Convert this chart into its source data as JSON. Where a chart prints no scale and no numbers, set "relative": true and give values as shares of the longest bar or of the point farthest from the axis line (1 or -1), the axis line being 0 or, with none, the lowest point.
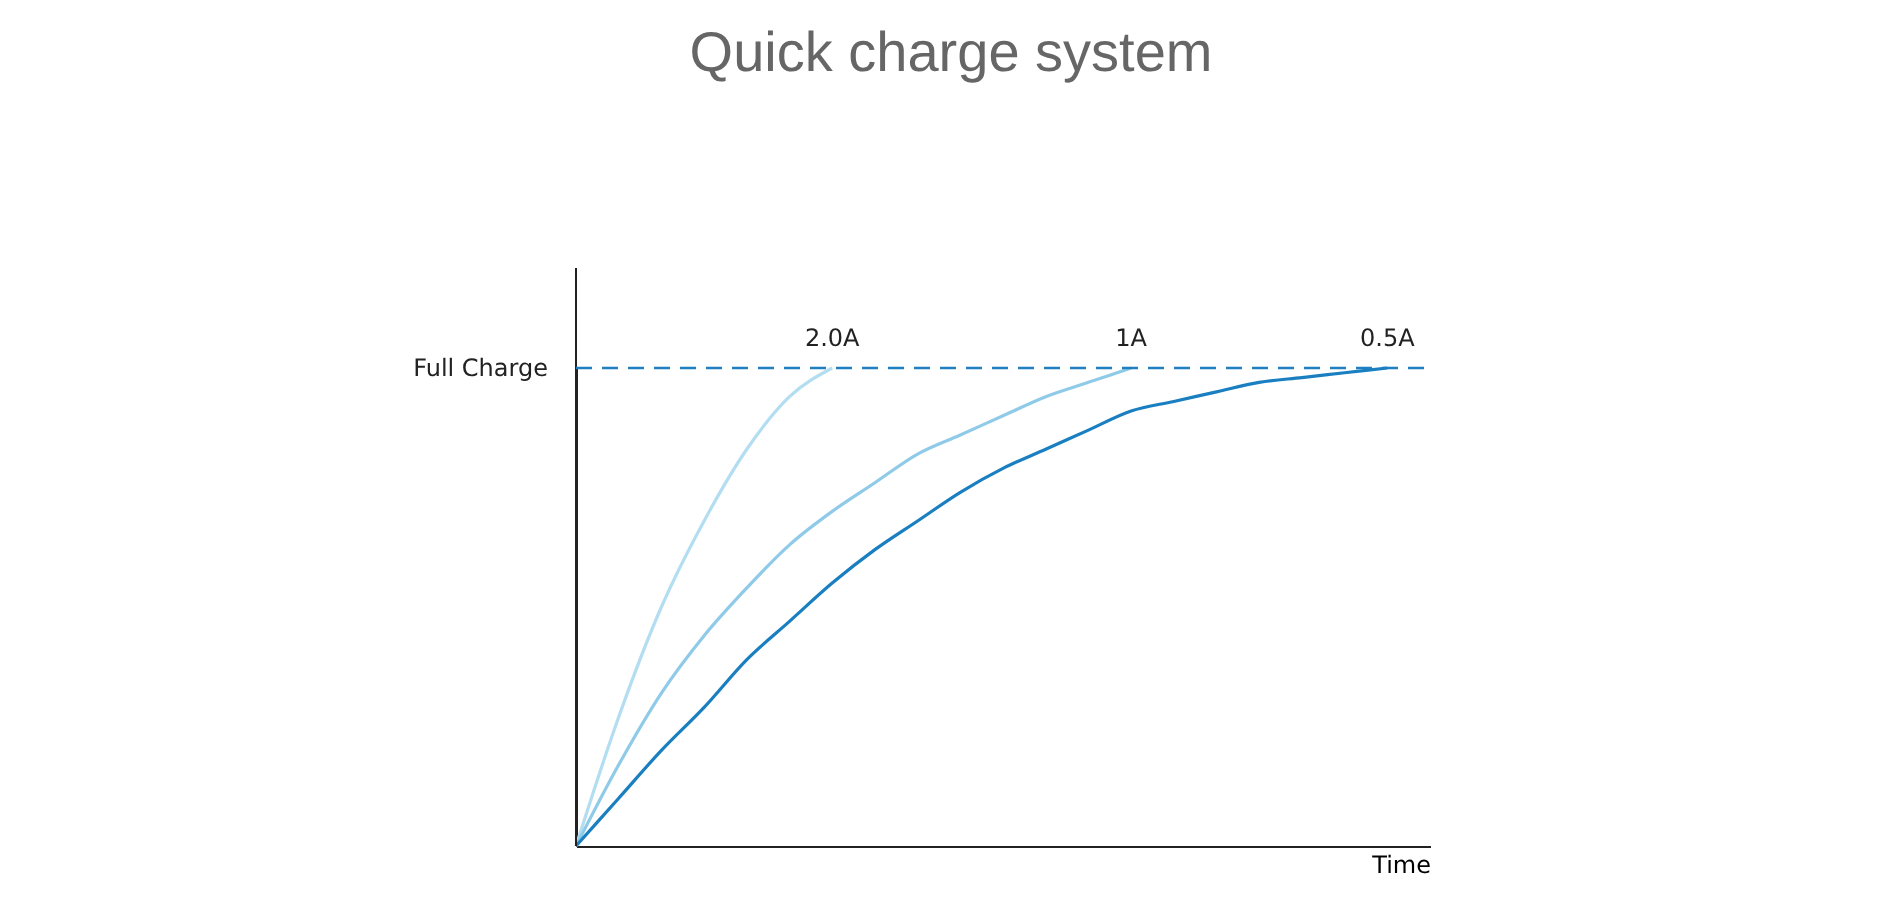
{
  "chart_data": {
    "type": "line",
    "title": "Quick charge system",
    "xlabel": "Time",
    "relative": true,
    "legend": false,
    "grid": false,
    "tick_labels": false,
    "marker": "none",
    "line_style": "solid",
    "categories": [
      null,
      null,
      null,
      null,
      null,
      null,
      null,
      null,
      null,
      null,
      null,
      null,
      null,
      null,
      null,
      null,
      null,
      null,
      null,
      null,
      null
    ],
    "series": [
      {
        "name": "2.0A",
        "color": "#b3ddf1",
        "values": [
          0,
          0.27,
          0.5,
          0.68,
          0.83,
          0.94,
          1.0,
          null,
          null,
          null,
          null,
          null,
          null,
          null,
          null,
          null,
          null,
          null,
          null,
          null,
          null
        ]
      },
      {
        "name": "1A",
        "color": "#8fcbe8",
        "values": [
          0,
          0.17,
          0.32,
          0.44,
          0.54,
          0.63,
          0.7,
          0.76,
          0.82,
          0.86,
          0.9,
          0.94,
          0.97,
          1.0,
          null,
          null,
          null,
          null,
          null,
          null,
          null
        ]
      },
      {
        "name": "0.5A",
        "color": "#1a7fc1",
        "values": [
          0,
          0.1,
          0.2,
          0.29,
          0.39,
          0.47,
          0.55,
          0.62,
          0.68,
          0.74,
          0.79,
          0.83,
          0.87,
          0.91,
          0.93,
          0.95,
          0.97,
          0.98,
          0.99,
          1.0,
          null
        ]
      }
    ],
    "ref_lines": [
      {
        "axis": "y",
        "value": 1,
        "label": "Full Charge",
        "color": "#1f7fc0",
        "line_style": "dashed"
      }
    ]
  }
}
